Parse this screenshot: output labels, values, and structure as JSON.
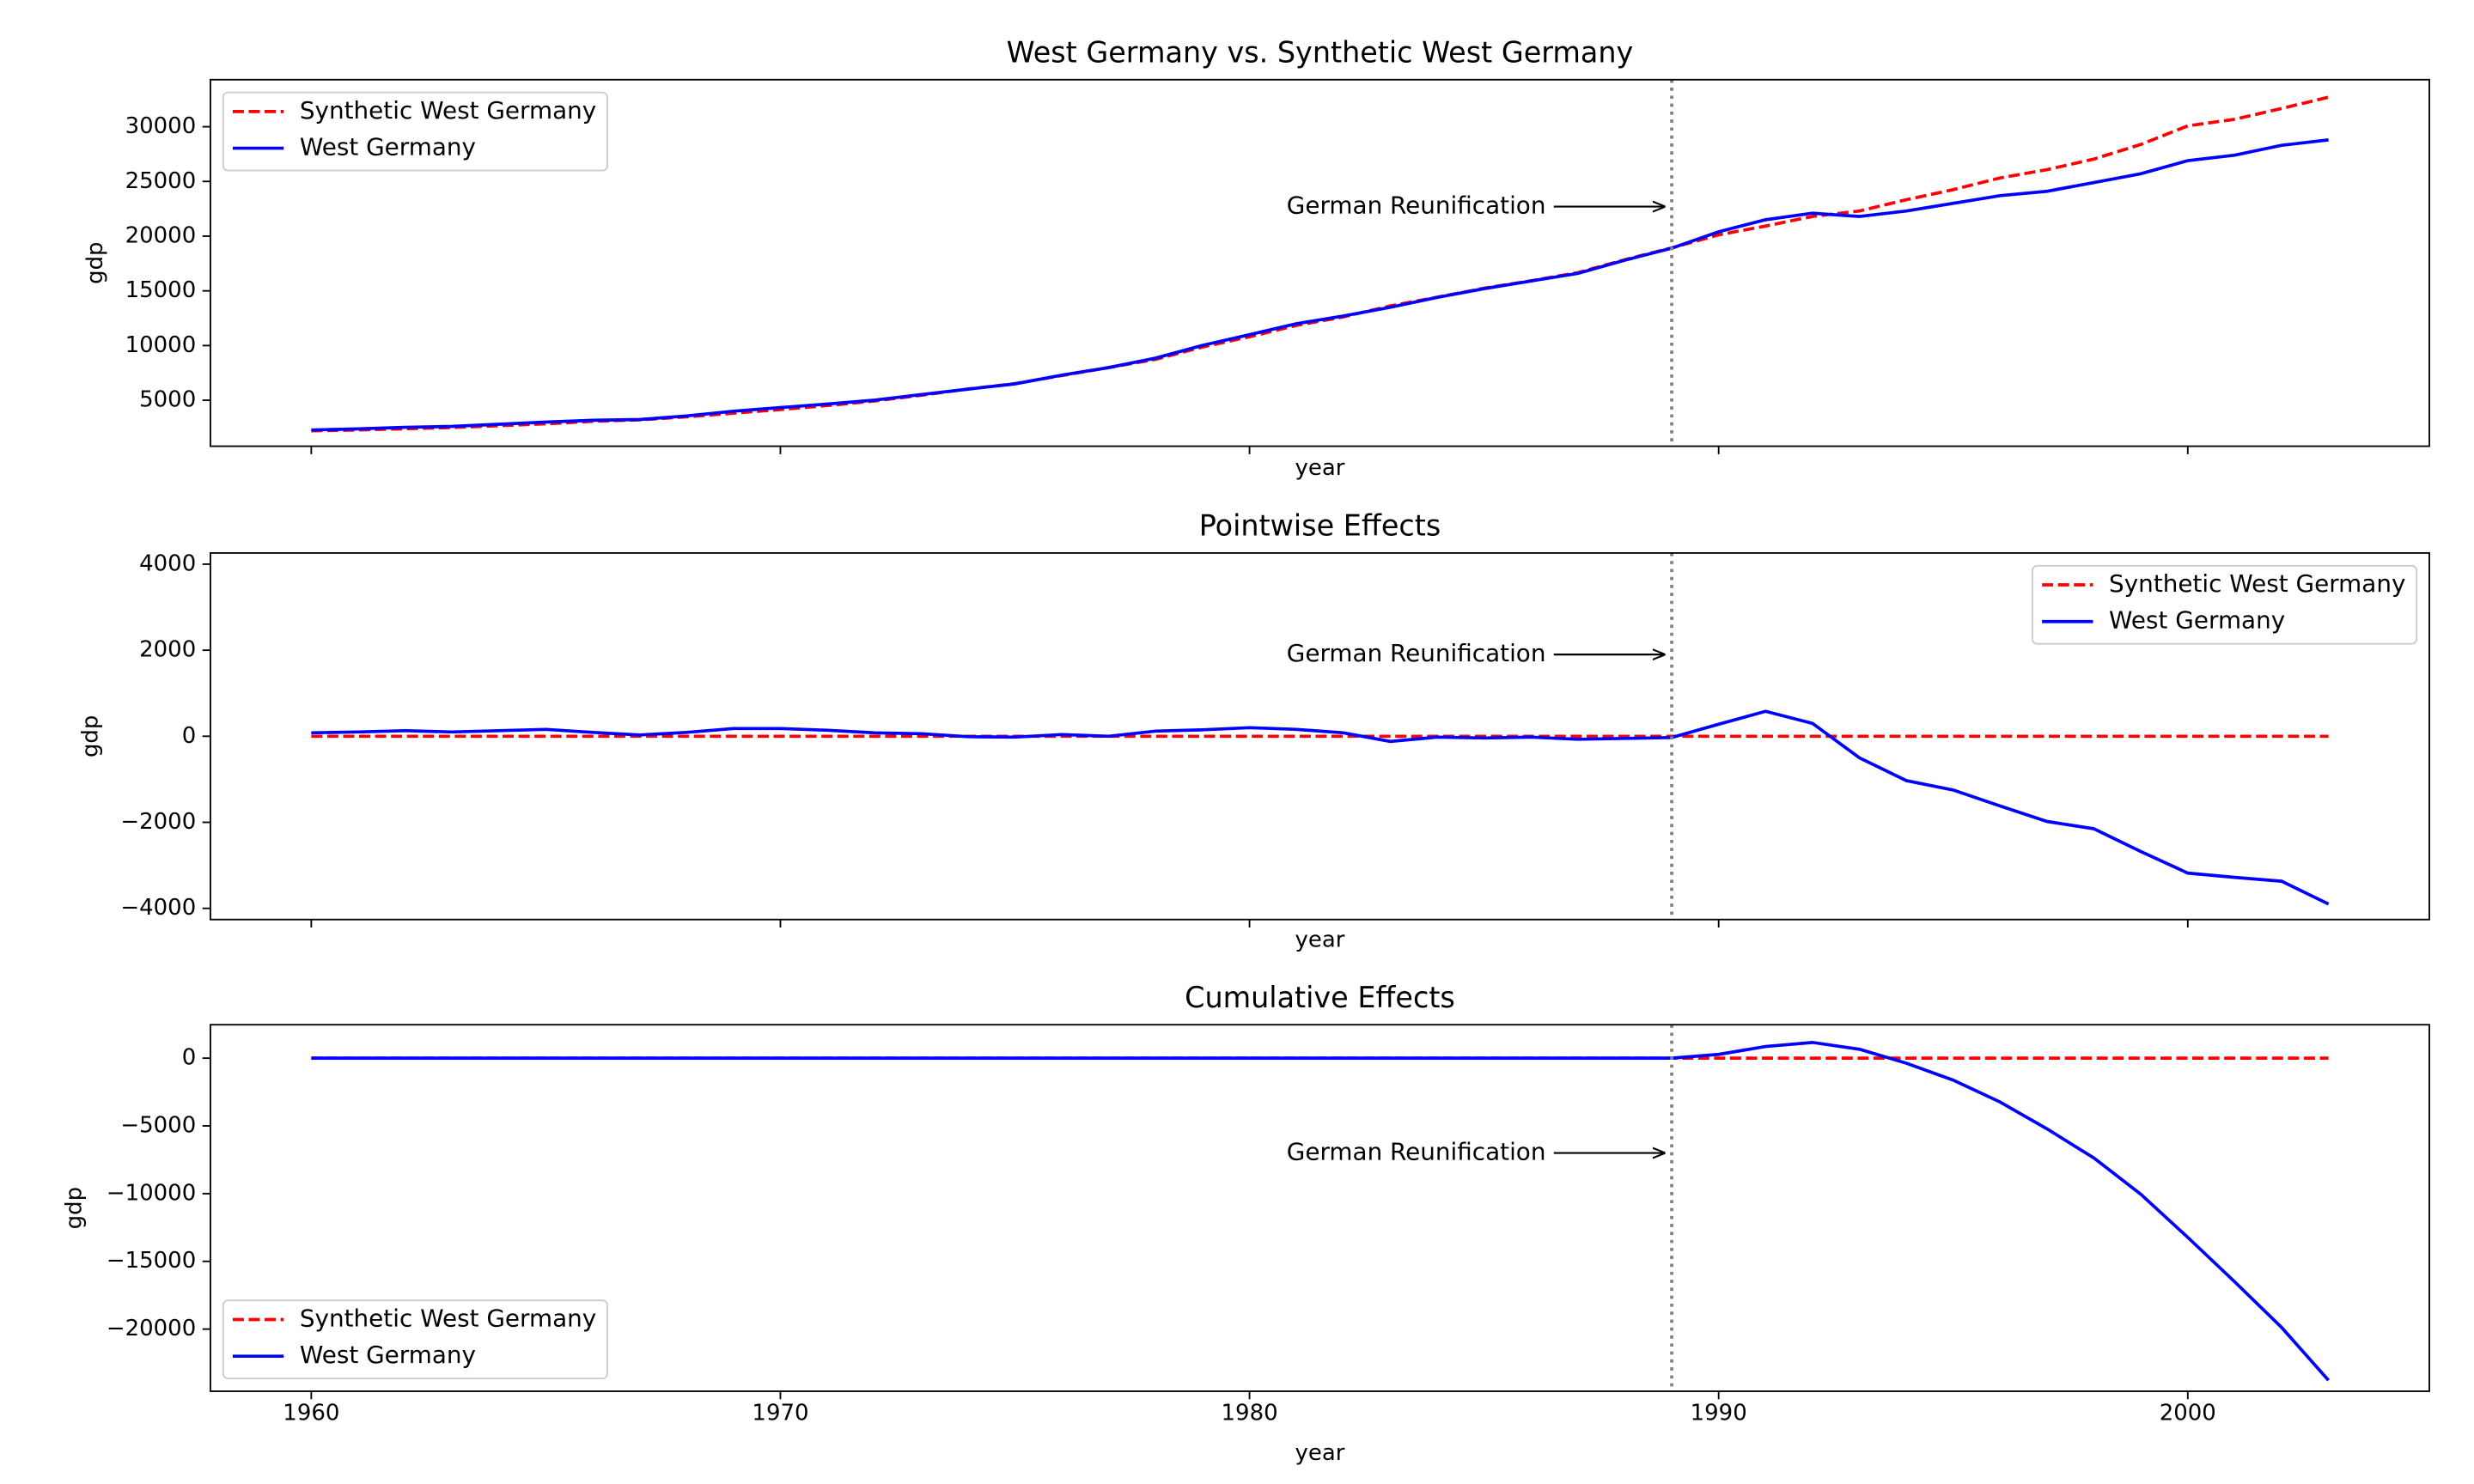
{
  "chart_data": [
    {
      "type": "line",
      "title": "West Germany vs. Synthetic West Germany",
      "xlabel": "year",
      "ylabel": "gdp",
      "x": [
        1960,
        1961,
        1962,
        1963,
        1964,
        1965,
        1966,
        1967,
        1968,
        1969,
        1970,
        1971,
        1972,
        1973,
        1974,
        1975,
        1976,
        1977,
        1978,
        1979,
        1980,
        1981,
        1982,
        1983,
        1984,
        1985,
        1986,
        1987,
        1988,
        1989,
        1990,
        1991,
        1992,
        1993,
        1994,
        1995,
        1996,
        1997,
        1998,
        1999,
        2000,
        2001,
        2002,
        2003
      ],
      "series": [
        {
          "name": "Synthetic West Germany",
          "color": "#ff0000",
          "linestyle": "dashed",
          "values": [
            2204,
            2288,
            2397,
            2510,
            2676,
            2845,
            3078,
            3211,
            3481,
            3818,
            4154,
            4512,
            4929,
            5459,
            6029,
            6518,
            7260,
            7989,
            8739,
            9870,
            10800,
            11840,
            12620,
            13620,
            14420,
            15240,
            15920,
            16670,
            17850,
            18930,
            20120,
            20920,
            21800,
            22300,
            23330,
            24250,
            25320,
            26080,
            27050,
            28380,
            30080,
            30680,
            31670,
            32700
          ]
        },
        {
          "name": "West Germany",
          "color": "#0000ff",
          "linestyle": "solid",
          "values": [
            2284,
            2388,
            2527,
            2610,
            2806,
            3005,
            3168,
            3241,
            3571,
            3998,
            4334,
            4652,
            5009,
            5519,
            6019,
            6498,
            7300,
            7989,
            8859,
            10020,
            11000,
            12000,
            12700,
            13500,
            14400,
            15200,
            15900,
            16600,
            17800,
            18900,
            20400,
            21500,
            22100,
            21800,
            22300,
            23000,
            23700,
            24100,
            24900,
            25700,
            26900,
            27400,
            28300,
            28800
          ]
        }
      ],
      "xlim": [
        1957.85,
        2005.15
      ],
      "ylim": [
        800,
        34300
      ],
      "xticks": [
        1960,
        1970,
        1980,
        1990,
        2000
      ],
      "yticks": [
        5000,
        10000,
        15000,
        20000,
        25000,
        30000
      ],
      "legend": "upper left",
      "annotations": [
        {
          "text": "German Reunification",
          "x": 1989,
          "y": 22700
        }
      ]
    },
    {
      "type": "line",
      "title": "Pointwise Effects",
      "xlabel": "year",
      "ylabel": "gdp",
      "x": [
        1960,
        1961,
        1962,
        1963,
        1964,
        1965,
        1966,
        1967,
        1968,
        1969,
        1970,
        1971,
        1972,
        1973,
        1974,
        1975,
        1976,
        1977,
        1978,
        1979,
        1980,
        1981,
        1982,
        1983,
        1984,
        1985,
        1986,
        1987,
        1988,
        1989,
        1990,
        1991,
        1992,
        1993,
        1994,
        1995,
        1996,
        1997,
        1998,
        1999,
        2000,
        2001,
        2002,
        2003
      ],
      "series": [
        {
          "name": "Synthetic West Germany",
          "color": "#ff0000",
          "linestyle": "dashed",
          "values": [
            0,
            0,
            0,
            0,
            0,
            0,
            0,
            0,
            0,
            0,
            0,
            0,
            0,
            0,
            0,
            0,
            0,
            0,
            0,
            0,
            0,
            0,
            0,
            0,
            0,
            0,
            0,
            0,
            0,
            0,
            0,
            0,
            0,
            0,
            0,
            0,
            0,
            0,
            0,
            0,
            0,
            0,
            0,
            0
          ]
        },
        {
          "name": "West Germany",
          "color": "#0000ff",
          "linestyle": "solid",
          "values": [
            80,
            100,
            130,
            100,
            130,
            160,
            90,
            30,
            90,
            180,
            180,
            140,
            80,
            60,
            -10,
            -20,
            40,
            0,
            120,
            150,
            200,
            160,
            80,
            -120,
            -20,
            -40,
            -20,
            -70,
            -50,
            -30,
            280,
            580,
            300,
            -500,
            -1030,
            -1250,
            -1620,
            -1980,
            -2150,
            -2680,
            -3180,
            -3280,
            -3370,
            -3900
          ]
        }
      ],
      "xlim": [
        1957.85,
        2005.15
      ],
      "ylim": [
        -4260,
        4260
      ],
      "xticks": [
        1960,
        1970,
        1980,
        1990,
        2000
      ],
      "yticks": [
        {
          "value": -4000,
          "label": "−4000"
        },
        {
          "value": -2000,
          "label": "−2000"
        },
        0,
        2000,
        4000
      ],
      "legend": "upper right",
      "annotations": [
        {
          "text": "German Reunification",
          "x": 1989,
          "y": 1900
        }
      ]
    },
    {
      "type": "line",
      "title": "Cumulative Effects",
      "xlabel": "year",
      "ylabel": "gdp",
      "x": [
        1960,
        1961,
        1962,
        1963,
        1964,
        1965,
        1966,
        1967,
        1968,
        1969,
        1970,
        1971,
        1972,
        1973,
        1974,
        1975,
        1976,
        1977,
        1978,
        1979,
        1980,
        1981,
        1982,
        1983,
        1984,
        1985,
        1986,
        1987,
        1988,
        1989,
        1990,
        1991,
        1992,
        1993,
        1994,
        1995,
        1996,
        1997,
        1998,
        1999,
        2000,
        2001,
        2002,
        2003
      ],
      "series": [
        {
          "name": "Synthetic West Germany",
          "color": "#ff0000",
          "linestyle": "dashed",
          "values": [
            0,
            0,
            0,
            0,
            0,
            0,
            0,
            0,
            0,
            0,
            0,
            0,
            0,
            0,
            0,
            0,
            0,
            0,
            0,
            0,
            0,
            0,
            0,
            0,
            0,
            0,
            0,
            0,
            0,
            0,
            0,
            0,
            0,
            0,
            0,
            0,
            0,
            0,
            0,
            0,
            0,
            0,
            0,
            0
          ]
        },
        {
          "name": "West Germany",
          "color": "#0000ff",
          "linestyle": "solid",
          "values": [
            0,
            0,
            0,
            0,
            0,
            0,
            0,
            0,
            0,
            0,
            0,
            0,
            0,
            0,
            0,
            0,
            0,
            0,
            0,
            0,
            0,
            0,
            0,
            0,
            0,
            0,
            0,
            0,
            0,
            0,
            280,
            860,
            1160,
            660,
            -370,
            -1620,
            -3240,
            -5220,
            -7370,
            -10050,
            -13230,
            -16510,
            -19880,
            -23780
          ]
        }
      ],
      "xlim": [
        1957.85,
        2005.15
      ],
      "ylim": [
        -24590,
        2470
      ],
      "xticks": [
        1960,
        1970,
        1980,
        1990,
        2000
      ],
      "yticks": [
        {
          "value": -20000,
          "label": "−20000"
        },
        {
          "value": -15000,
          "label": "−15000"
        },
        {
          "value": -10000,
          "label": "−10000"
        },
        {
          "value": -5000,
          "label": "−5000"
        },
        0
      ],
      "legend": "lower left",
      "annotations": [
        {
          "text": "German Reunification",
          "x": 1989,
          "y": -7000
        }
      ]
    }
  ]
}
